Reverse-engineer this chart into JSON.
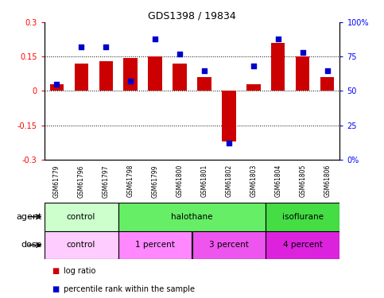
{
  "title": "GDS1398 / 19834",
  "samples": [
    "GSM61779",
    "GSM61796",
    "GSM61797",
    "GSM61798",
    "GSM61799",
    "GSM61800",
    "GSM61801",
    "GSM61802",
    "GSM61803",
    "GSM61804",
    "GSM61805",
    "GSM61806"
  ],
  "log_ratio": [
    0.03,
    0.12,
    0.13,
    0.145,
    0.15,
    0.12,
    0.06,
    -0.22,
    0.03,
    0.21,
    0.15,
    0.06
  ],
  "pct_rank": [
    55,
    82,
    82,
    57,
    88,
    77,
    65,
    12,
    68,
    88,
    78,
    65
  ],
  "agent_groups": [
    {
      "label": "control",
      "start": 0,
      "end": 3,
      "color": "#ccffcc"
    },
    {
      "label": "halothane",
      "start": 3,
      "end": 9,
      "color": "#66ee66"
    },
    {
      "label": "isoflurane",
      "start": 9,
      "end": 12,
      "color": "#44dd44"
    }
  ],
  "dose_groups": [
    {
      "label": "control",
      "start": 0,
      "end": 3,
      "color": "#ffccff"
    },
    {
      "label": "1 percent",
      "start": 3,
      "end": 6,
      "color": "#ff88ff"
    },
    {
      "label": "3 percent",
      "start": 6,
      "end": 9,
      "color": "#ee55ee"
    },
    {
      "label": "4 percent",
      "start": 9,
      "end": 12,
      "color": "#dd22dd"
    }
  ],
  "ylim_left": [
    -0.3,
    0.3
  ],
  "ylim_right": [
    0,
    100
  ],
  "yticks_left": [
    -0.3,
    -0.15,
    0,
    0.15,
    0.3
  ],
  "yticks_right": [
    0,
    25,
    50,
    75,
    100
  ],
  "hlines": [
    -0.15,
    0,
    0.15
  ],
  "bar_color": "#cc0000",
  "dot_color": "#0000cc",
  "bar_width": 0.55,
  "bg_color": "#ffffff",
  "sample_bg": "#cccccc",
  "agent_label": "agent",
  "dose_label": "dose",
  "legend_items": [
    {
      "label": "log ratio",
      "color": "#cc0000"
    },
    {
      "label": "percentile rank within the sample",
      "color": "#0000cc"
    }
  ]
}
